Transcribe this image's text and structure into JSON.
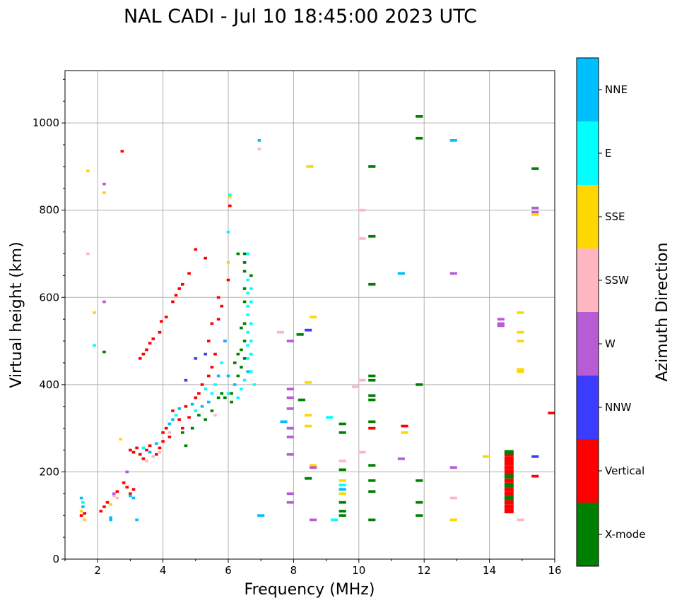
{
  "chart_data": {
    "type": "scatter",
    "title": "NAL CADI - Jul 10 18:45:00 2023 UTC",
    "xlabel": "Frequency (MHz)",
    "ylabel": "Virtual height (km)",
    "xlim": [
      1,
      16
    ],
    "ylim": [
      0,
      1120
    ],
    "xticks": [
      2,
      4,
      6,
      8,
      10,
      12,
      14,
      16
    ],
    "yticks": [
      0,
      200,
      400,
      600,
      800,
      1000
    ],
    "grid": true,
    "colorbar": {
      "label": "Azimuth Direction",
      "categories": [
        "X-mode",
        "Vertical",
        "NNW",
        "W",
        "SSW",
        "SSE",
        "E",
        "NNE"
      ],
      "colors": [
        "#008000",
        "#ff0000",
        "#3c3cff",
        "#b85cd6",
        "#ffb6c1",
        "#ffd700",
        "#00ffff",
        "#00bfff"
      ]
    },
    "point_format": [
      "frequency_mhz",
      "height_km",
      "direction_index"
    ],
    "points": [
      [
        1.5,
        100,
        1
      ],
      [
        1.5,
        110,
        5
      ],
      [
        1.55,
        120,
        7
      ],
      [
        1.5,
        140,
        7
      ],
      [
        1.6,
        90,
        5
      ],
      [
        1.6,
        105,
        1
      ],
      [
        1.55,
        130,
        6
      ],
      [
        2.1,
        110,
        1
      ],
      [
        2.2,
        120,
        1
      ],
      [
        2.3,
        130,
        1
      ],
      [
        2.4,
        125,
        5
      ],
      [
        2.5,
        145,
        4
      ],
      [
        2.5,
        150,
        3
      ],
      [
        2.6,
        155,
        1
      ],
      [
        2.6,
        140,
        4
      ],
      [
        2.4,
        95,
        7
      ],
      [
        2.4,
        90,
        7
      ],
      [
        2.8,
        175,
        1
      ],
      [
        2.9,
        165,
        1
      ],
      [
        3.0,
        150,
        1
      ],
      [
        3.1,
        160,
        1
      ],
      [
        3.0,
        145,
        7
      ],
      [
        3.1,
        140,
        7
      ],
      [
        2.9,
        200,
        3
      ],
      [
        3.2,
        90,
        7
      ],
      [
        3.0,
        250,
        1
      ],
      [
        3.1,
        245,
        1
      ],
      [
        3.2,
        255,
        1
      ],
      [
        3.3,
        240,
        1
      ],
      [
        3.4,
        230,
        1
      ],
      [
        3.5,
        250,
        1
      ],
      [
        3.4,
        255,
        6
      ],
      [
        3.6,
        260,
        1
      ],
      [
        3.7,
        235,
        4
      ],
      [
        3.5,
        225,
        4
      ],
      [
        3.8,
        240,
        1
      ],
      [
        3.9,
        255,
        1
      ],
      [
        3.9,
        245,
        4
      ],
      [
        3.8,
        265,
        7
      ],
      [
        3.6,
        245,
        7
      ],
      [
        4.0,
        270,
        1
      ],
      [
        4.0,
        290,
        1
      ],
      [
        4.1,
        300,
        1
      ],
      [
        4.2,
        310,
        7
      ],
      [
        4.2,
        280,
        1
      ],
      [
        4.3,
        320,
        7
      ],
      [
        4.3,
        340,
        1
      ],
      [
        4.4,
        330,
        6
      ],
      [
        4.2,
        290,
        4
      ],
      [
        4.5,
        320,
        1
      ],
      [
        4.5,
        345,
        7
      ],
      [
        4.6,
        300,
        1
      ],
      [
        4.7,
        350,
        1
      ],
      [
        4.6,
        290,
        0
      ],
      [
        4.7,
        260,
        0
      ],
      [
        4.8,
        325,
        1
      ],
      [
        4.9,
        355,
        7
      ],
      [
        4.9,
        300,
        0
      ],
      [
        5.0,
        340,
        6
      ],
      [
        5.0,
        370,
        1
      ],
      [
        5.1,
        380,
        1
      ],
      [
        5.1,
        330,
        0
      ],
      [
        5.2,
        350,
        7
      ],
      [
        5.2,
        400,
        1
      ],
      [
        5.3,
        390,
        6
      ],
      [
        5.3,
        320,
        0
      ],
      [
        5.4,
        420,
        1
      ],
      [
        5.4,
        360,
        7
      ],
      [
        5.5,
        440,
        1
      ],
      [
        5.5,
        340,
        0
      ],
      [
        5.5,
        380,
        6
      ],
      [
        5.6,
        470,
        1
      ],
      [
        5.6,
        400,
        6
      ],
      [
        5.6,
        330,
        4
      ],
      [
        5.7,
        370,
        0
      ],
      [
        5.7,
        420,
        7
      ],
      [
        5.8,
        380,
        0
      ],
      [
        5.8,
        450,
        6
      ],
      [
        5.9,
        370,
        0
      ],
      [
        5.9,
        500,
        1
      ],
      [
        6.0,
        380,
        6
      ],
      [
        6.0,
        420,
        7
      ],
      [
        5.3,
        470,
        2
      ],
      [
        5.0,
        460,
        2
      ],
      [
        4.7,
        410,
        2
      ],
      [
        5.7,
        550,
        1
      ],
      [
        5.7,
        600,
        1
      ],
      [
        5.8,
        580,
        1
      ],
      [
        5.5,
        540,
        1
      ],
      [
        5.4,
        500,
        1
      ],
      [
        5.9,
        500,
        7
      ],
      [
        6.0,
        640,
        1
      ],
      [
        3.3,
        460,
        1
      ],
      [
        3.4,
        470,
        1
      ],
      [
        3.5,
        480,
        1
      ],
      [
        3.6,
        495,
        1
      ],
      [
        3.7,
        505,
        1
      ],
      [
        3.9,
        520,
        1
      ],
      [
        3.95,
        545,
        1
      ],
      [
        4.1,
        555,
        1
      ],
      [
        4.3,
        590,
        1
      ],
      [
        4.4,
        605,
        1
      ],
      [
        4.5,
        620,
        1
      ],
      [
        4.6,
        630,
        1
      ],
      [
        4.8,
        655,
        1
      ],
      [
        5.0,
        710,
        1
      ],
      [
        5.3,
        690,
        1
      ],
      [
        6.3,
        700,
        0
      ],
      [
        6.5,
        700,
        0
      ],
      [
        6.6,
        700,
        6
      ],
      [
        6.5,
        680,
        0
      ],
      [
        6.5,
        660,
        0
      ],
      [
        6.6,
        640,
        6
      ],
      [
        6.5,
        620,
        0
      ],
      [
        6.6,
        610,
        6
      ],
      [
        6.5,
        590,
        0
      ],
      [
        6.6,
        580,
        6
      ],
      [
        6.6,
        560,
        6
      ],
      [
        6.5,
        540,
        0
      ],
      [
        6.4,
        530,
        0
      ],
      [
        6.6,
        520,
        6
      ],
      [
        6.5,
        500,
        0
      ],
      [
        6.4,
        480,
        0
      ],
      [
        6.6,
        490,
        6
      ],
      [
        6.3,
        470,
        0
      ],
      [
        6.5,
        460,
        0
      ],
      [
        6.2,
        450,
        0
      ],
      [
        6.6,
        460,
        6
      ],
      [
        6.4,
        440,
        0
      ],
      [
        6.6,
        430,
        7
      ],
      [
        6.3,
        420,
        0
      ],
      [
        6.5,
        410,
        6
      ],
      [
        6.2,
        400,
        7
      ],
      [
        6.4,
        390,
        6
      ],
      [
        6.1,
        380,
        0
      ],
      [
        6.3,
        370,
        6
      ],
      [
        6.1,
        360,
        0
      ],
      [
        6.7,
        650,
        0
      ],
      [
        6.7,
        620,
        6
      ],
      [
        6.7,
        590,
        6
      ],
      [
        6.7,
        540,
        6
      ],
      [
        6.7,
        500,
        6
      ],
      [
        6.7,
        470,
        6
      ],
      [
        6.7,
        430,
        6
      ],
      [
        6.8,
        400,
        6
      ],
      [
        6.0,
        680,
        5
      ],
      [
        6.05,
        830,
        5
      ],
      [
        6.05,
        835,
        6
      ],
      [
        6.05,
        810,
        1
      ],
      [
        6.0,
        750,
        6
      ],
      [
        1.7,
        890,
        5
      ],
      [
        1.7,
        700,
        4
      ],
      [
        1.9,
        565,
        5
      ],
      [
        1.9,
        490,
        6
      ],
      [
        2.2,
        860,
        3
      ],
      [
        2.2,
        840,
        5
      ],
      [
        2.2,
        590,
        3
      ],
      [
        2.2,
        475,
        0
      ],
      [
        2.75,
        935,
        1
      ],
      [
        2.7,
        275,
        5
      ],
      [
        6.95,
        960,
        7
      ],
      [
        6.95,
        940,
        4
      ],
      [
        7.0,
        100,
        7
      ],
      [
        7.6,
        520,
        4
      ],
      [
        7.7,
        315,
        7
      ],
      [
        7.9,
        500,
        3
      ],
      [
        7.9,
        390,
        3
      ],
      [
        7.9,
        370,
        3
      ],
      [
        7.9,
        345,
        3
      ],
      [
        7.9,
        300,
        3
      ],
      [
        7.9,
        280,
        3
      ],
      [
        7.9,
        240,
        3
      ],
      [
        7.9,
        150,
        3
      ],
      [
        7.9,
        130,
        3
      ],
      [
        8.2,
        515,
        0
      ],
      [
        8.25,
        365,
        0
      ],
      [
        8.5,
        900,
        5
      ],
      [
        8.45,
        525,
        2
      ],
      [
        8.6,
        555,
        5
      ],
      [
        8.45,
        405,
        5
      ],
      [
        8.45,
        330,
        5
      ],
      [
        8.45,
        305,
        5
      ],
      [
        8.45,
        185,
        0
      ],
      [
        8.6,
        215,
        5
      ],
      [
        8.6,
        210,
        3
      ],
      [
        8.6,
        90,
        3
      ],
      [
        9.1,
        325,
        6
      ],
      [
        9.25,
        90,
        6
      ],
      [
        9.5,
        310,
        0
      ],
      [
        9.5,
        290,
        0
      ],
      [
        9.5,
        225,
        4
      ],
      [
        9.5,
        205,
        0
      ],
      [
        9.5,
        180,
        5
      ],
      [
        9.5,
        170,
        6
      ],
      [
        9.5,
        160,
        7
      ],
      [
        9.5,
        150,
        5
      ],
      [
        9.5,
        130,
        0
      ],
      [
        9.5,
        110,
        0
      ],
      [
        9.5,
        100,
        0
      ],
      [
        9.9,
        395,
        4
      ],
      [
        10.1,
        800,
        4
      ],
      [
        10.1,
        735,
        4
      ],
      [
        10.1,
        410,
        4
      ],
      [
        10.1,
        245,
        4
      ],
      [
        10.4,
        900,
        0
      ],
      [
        10.4,
        740,
        0
      ],
      [
        10.4,
        630,
        0
      ],
      [
        10.4,
        420,
        0
      ],
      [
        10.4,
        410,
        0
      ],
      [
        10.4,
        375,
        0
      ],
      [
        10.4,
        365,
        0
      ],
      [
        10.4,
        315,
        0
      ],
      [
        10.4,
        300,
        1
      ],
      [
        10.4,
        215,
        0
      ],
      [
        10.4,
        180,
        0
      ],
      [
        10.4,
        155,
        0
      ],
      [
        10.4,
        90,
        0
      ],
      [
        11.3,
        655,
        7
      ],
      [
        11.3,
        230,
        3
      ],
      [
        11.4,
        305,
        1
      ],
      [
        11.4,
        290,
        5
      ],
      [
        11.85,
        1015,
        0
      ],
      [
        11.85,
        965,
        0
      ],
      [
        11.85,
        400,
        0
      ],
      [
        11.85,
        180,
        0
      ],
      [
        11.85,
        130,
        0
      ],
      [
        11.85,
        100,
        0
      ],
      [
        12.9,
        960,
        7
      ],
      [
        12.9,
        655,
        3
      ],
      [
        12.9,
        210,
        3
      ],
      [
        12.9,
        140,
        4
      ],
      [
        12.9,
        90,
        5
      ],
      [
        13.9,
        235,
        5
      ],
      [
        14.35,
        550,
        3
      ],
      [
        14.35,
        540,
        3
      ],
      [
        14.35,
        535,
        3
      ],
      [
        14.95,
        565,
        5
      ],
      [
        14.95,
        520,
        5
      ],
      [
        14.95,
        500,
        5
      ],
      [
        14.95,
        435,
        5
      ],
      [
        14.95,
        430,
        5
      ],
      [
        14.95,
        90,
        4
      ],
      [
        15.4,
        895,
        0
      ],
      [
        15.4,
        805,
        3
      ],
      [
        15.4,
        795,
        3
      ],
      [
        15.4,
        790,
        5
      ],
      [
        15.4,
        235,
        2
      ],
      [
        15.4,
        190,
        1
      ],
      [
        15.9,
        335,
        1
      ],
      [
        14.6,
        110,
        1
      ],
      [
        14.6,
        120,
        1
      ],
      [
        14.6,
        130,
        1
      ],
      [
        14.6,
        140,
        0
      ],
      [
        14.6,
        150,
        1
      ],
      [
        14.6,
        160,
        1
      ],
      [
        14.6,
        170,
        0
      ],
      [
        14.6,
        180,
        1
      ],
      [
        14.6,
        190,
        0
      ],
      [
        14.6,
        200,
        1
      ],
      [
        14.6,
        210,
        1
      ],
      [
        14.6,
        220,
        1
      ],
      [
        14.6,
        230,
        1
      ],
      [
        14.6,
        240,
        1
      ],
      [
        14.6,
        245,
        0
      ]
    ]
  }
}
